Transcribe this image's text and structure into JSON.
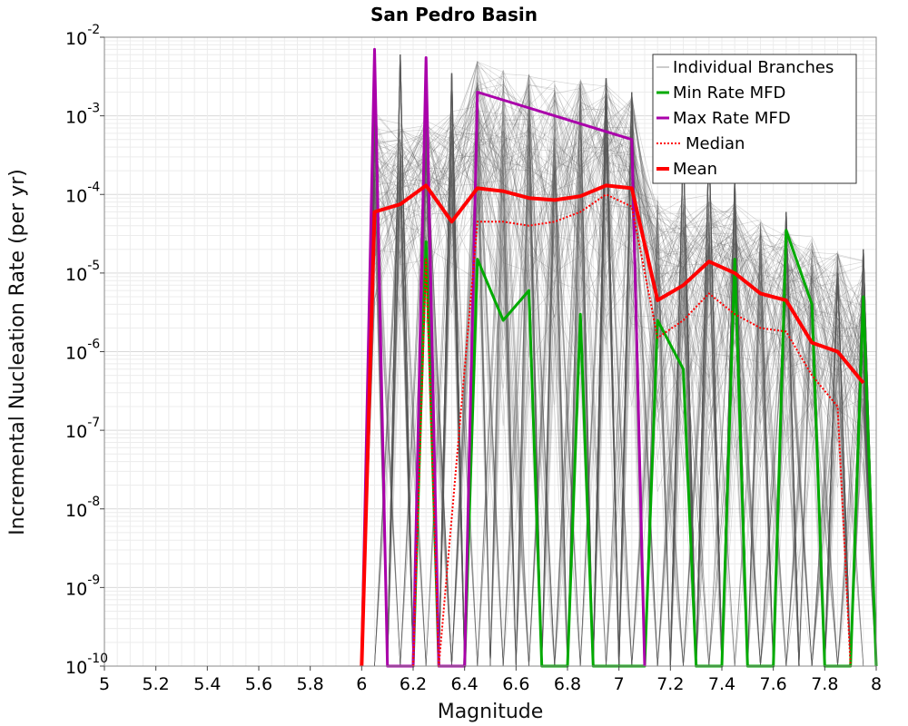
{
  "chart_data": {
    "type": "line",
    "title": "San Pedro Basin",
    "xlabel": "Magnitude",
    "ylabel": "Incremental Nucleation Rate (per yr)",
    "xlim": [
      5,
      8
    ],
    "ylim": [
      1e-10,
      0.01
    ],
    "yscale": "log",
    "grid": true,
    "legend_position": "top-right",
    "x_ticks": [
      "5",
      "5.2",
      "5.4",
      "5.6",
      "5.8",
      "6",
      "6.2",
      "6.4",
      "6.6",
      "6.8",
      "7",
      "7.2",
      "7.4",
      "7.6",
      "7.8",
      "8"
    ],
    "x_tick_values": [
      5,
      5.2,
      5.4,
      5.6,
      5.8,
      6,
      6.2,
      6.4,
      6.6,
      6.8,
      7,
      7.2,
      7.4,
      7.6,
      7.8,
      8
    ],
    "y_ticks": [
      {
        "base": "10",
        "exp": "-10",
        "value": 1e-10
      },
      {
        "base": "10",
        "exp": "-9",
        "value": 1e-09
      },
      {
        "base": "10",
        "exp": "-8",
        "value": 1e-08
      },
      {
        "base": "10",
        "exp": "-7",
        "value": 1e-07
      },
      {
        "base": "10",
        "exp": "-6",
        "value": 1e-06
      },
      {
        "base": "10",
        "exp": "-5",
        "value": 1e-05
      },
      {
        "base": "10",
        "exp": "-4",
        "value": 0.0001
      },
      {
        "base": "10",
        "exp": "-3",
        "value": 0.001
      },
      {
        "base": "10",
        "exp": "-2",
        "value": 0.01
      }
    ],
    "x": [
      5.95,
      6.05,
      6.15,
      6.25,
      6.35,
      6.45,
      6.55,
      6.65,
      6.75,
      6.85,
      6.95,
      7.05,
      7.15,
      7.25,
      7.35,
      7.45,
      7.55,
      7.65,
      7.75,
      7.85,
      7.95
    ],
    "series": [
      {
        "name": "Individual Branches",
        "color": "#555555",
        "style": "thin",
        "envelope_high": [
          0,
          0.0012,
          0.0008,
          0.001,
          0.0012,
          0.005,
          0.004,
          0.0035,
          0.003,
          0.003,
          0.003,
          0.002,
          0.0001,
          0.0001,
          0.0001,
          8e-05,
          5e-05,
          4e-05,
          3e-05,
          2e-05,
          1.5e-05
        ],
        "envelope_mid": [
          0,
          0.0002,
          0.00015,
          0.0002,
          0.0002,
          0.0005,
          0.0003,
          0.00025,
          0.0002,
          0.0003,
          0.0004,
          0.0003,
          1e-05,
          1.2e-05,
          2e-05,
          1.5e-05,
          8e-06,
          7e-06,
          3e-06,
          2e-06,
          1e-06
        ],
        "envelope_low": [
          0,
          1e-06,
          1e-06,
          1e-06,
          1e-06,
          1e-06,
          1e-07,
          1e-07,
          1e-07,
          1e-07,
          1e-07,
          1e-07,
          1e-08,
          1e-08,
          1e-08,
          1e-08,
          1e-08,
          1e-08,
          1e-08,
          1e-08,
          1e-08
        ],
        "spikes": [
          {
            "x": 6.05,
            "y": 0.002
          },
          {
            "x": 6.15,
            "y": 0.006
          },
          {
            "x": 6.25,
            "y": 0.0045
          },
          {
            "x": 6.35,
            "y": 0.0035
          },
          {
            "x": 6.95,
            "y": 0.003
          },
          {
            "x": 7.05,
            "y": 0.002
          },
          {
            "x": 7.25,
            "y": 0.00045
          },
          {
            "x": 7.35,
            "y": 0.0005
          },
          {
            "x": 7.45,
            "y": 0.00015
          },
          {
            "x": 7.65,
            "y": 6e-05
          },
          {
            "x": 7.85,
            "y": 1e-05
          },
          {
            "x": 7.95,
            "y": 2e-05
          }
        ]
      },
      {
        "name": "Min Rate MFD",
        "color": "#00aa00",
        "style": "solid",
        "x": [
          6.15,
          6.2,
          6.25,
          6.3,
          6.35,
          6.4,
          6.45,
          6.55,
          6.65,
          6.7,
          6.8,
          6.85,
          6.9,
          7.1,
          7.15,
          7.25,
          7.3,
          7.4,
          7.45,
          7.5,
          7.6,
          7.65,
          7.75,
          7.8,
          7.9,
          7.95,
          8.0
        ],
        "values": [
          1e-10,
          1e-10,
          2.5e-05,
          1e-10,
          1e-10,
          1e-10,
          1.5e-05,
          2.5e-06,
          6e-06,
          1e-10,
          1e-10,
          3e-06,
          1e-10,
          1e-10,
          2.5e-06,
          6e-07,
          1e-10,
          1e-10,
          1.5e-05,
          1e-10,
          1e-10,
          3.5e-05,
          4e-06,
          1e-10,
          1e-10,
          5e-06,
          1e-10
        ]
      },
      {
        "name": "Max Rate MFD",
        "color": "#aa00aa",
        "style": "solid",
        "x": [
          6.0,
          6.05,
          6.1,
          6.2,
          6.25,
          6.3,
          6.4,
          6.45,
          7.05,
          7.1
        ],
        "values": [
          1e-10,
          0.007,
          1e-10,
          1e-10,
          0.0055,
          1e-10,
          1e-10,
          0.002,
          0.0005,
          1e-10
        ]
      },
      {
        "name": "Median",
        "color": "#ff0000",
        "style": "dotted",
        "x": [
          6.2,
          6.25,
          6.3,
          6.45,
          6.55,
          6.65,
          6.75,
          6.85,
          6.95,
          7.05,
          7.15,
          7.25,
          7.35,
          7.45,
          7.55,
          7.65,
          7.75,
          7.85,
          7.9
        ],
        "values": [
          1e-10,
          1.5e-05,
          1e-10,
          4.5e-05,
          4.5e-05,
          4e-05,
          4.5e-05,
          6e-05,
          0.0001,
          7e-05,
          1.5e-06,
          2.5e-06,
          5.5e-06,
          3e-06,
          2e-06,
          1.8e-06,
          5e-07,
          2e-07,
          1e-10
        ]
      },
      {
        "name": "Mean",
        "color": "#ff0000",
        "style": "thick",
        "x": [
          6.0,
          6.05,
          6.15,
          6.25,
          6.35,
          6.45,
          6.55,
          6.65,
          6.75,
          6.85,
          6.95,
          7.05,
          7.15,
          7.25,
          7.35,
          7.45,
          7.55,
          7.65,
          7.75,
          7.85,
          7.95
        ],
        "values": [
          1e-10,
          6e-05,
          7.5e-05,
          0.00013,
          4.5e-05,
          0.00012,
          0.00011,
          9e-05,
          8.5e-05,
          9.5e-05,
          0.00013,
          0.00012,
          4.5e-06,
          7e-06,
          1.4e-05,
          1e-05,
          5.5e-06,
          4.5e-06,
          1.3e-06,
          1e-06,
          4e-07
        ]
      }
    ]
  }
}
